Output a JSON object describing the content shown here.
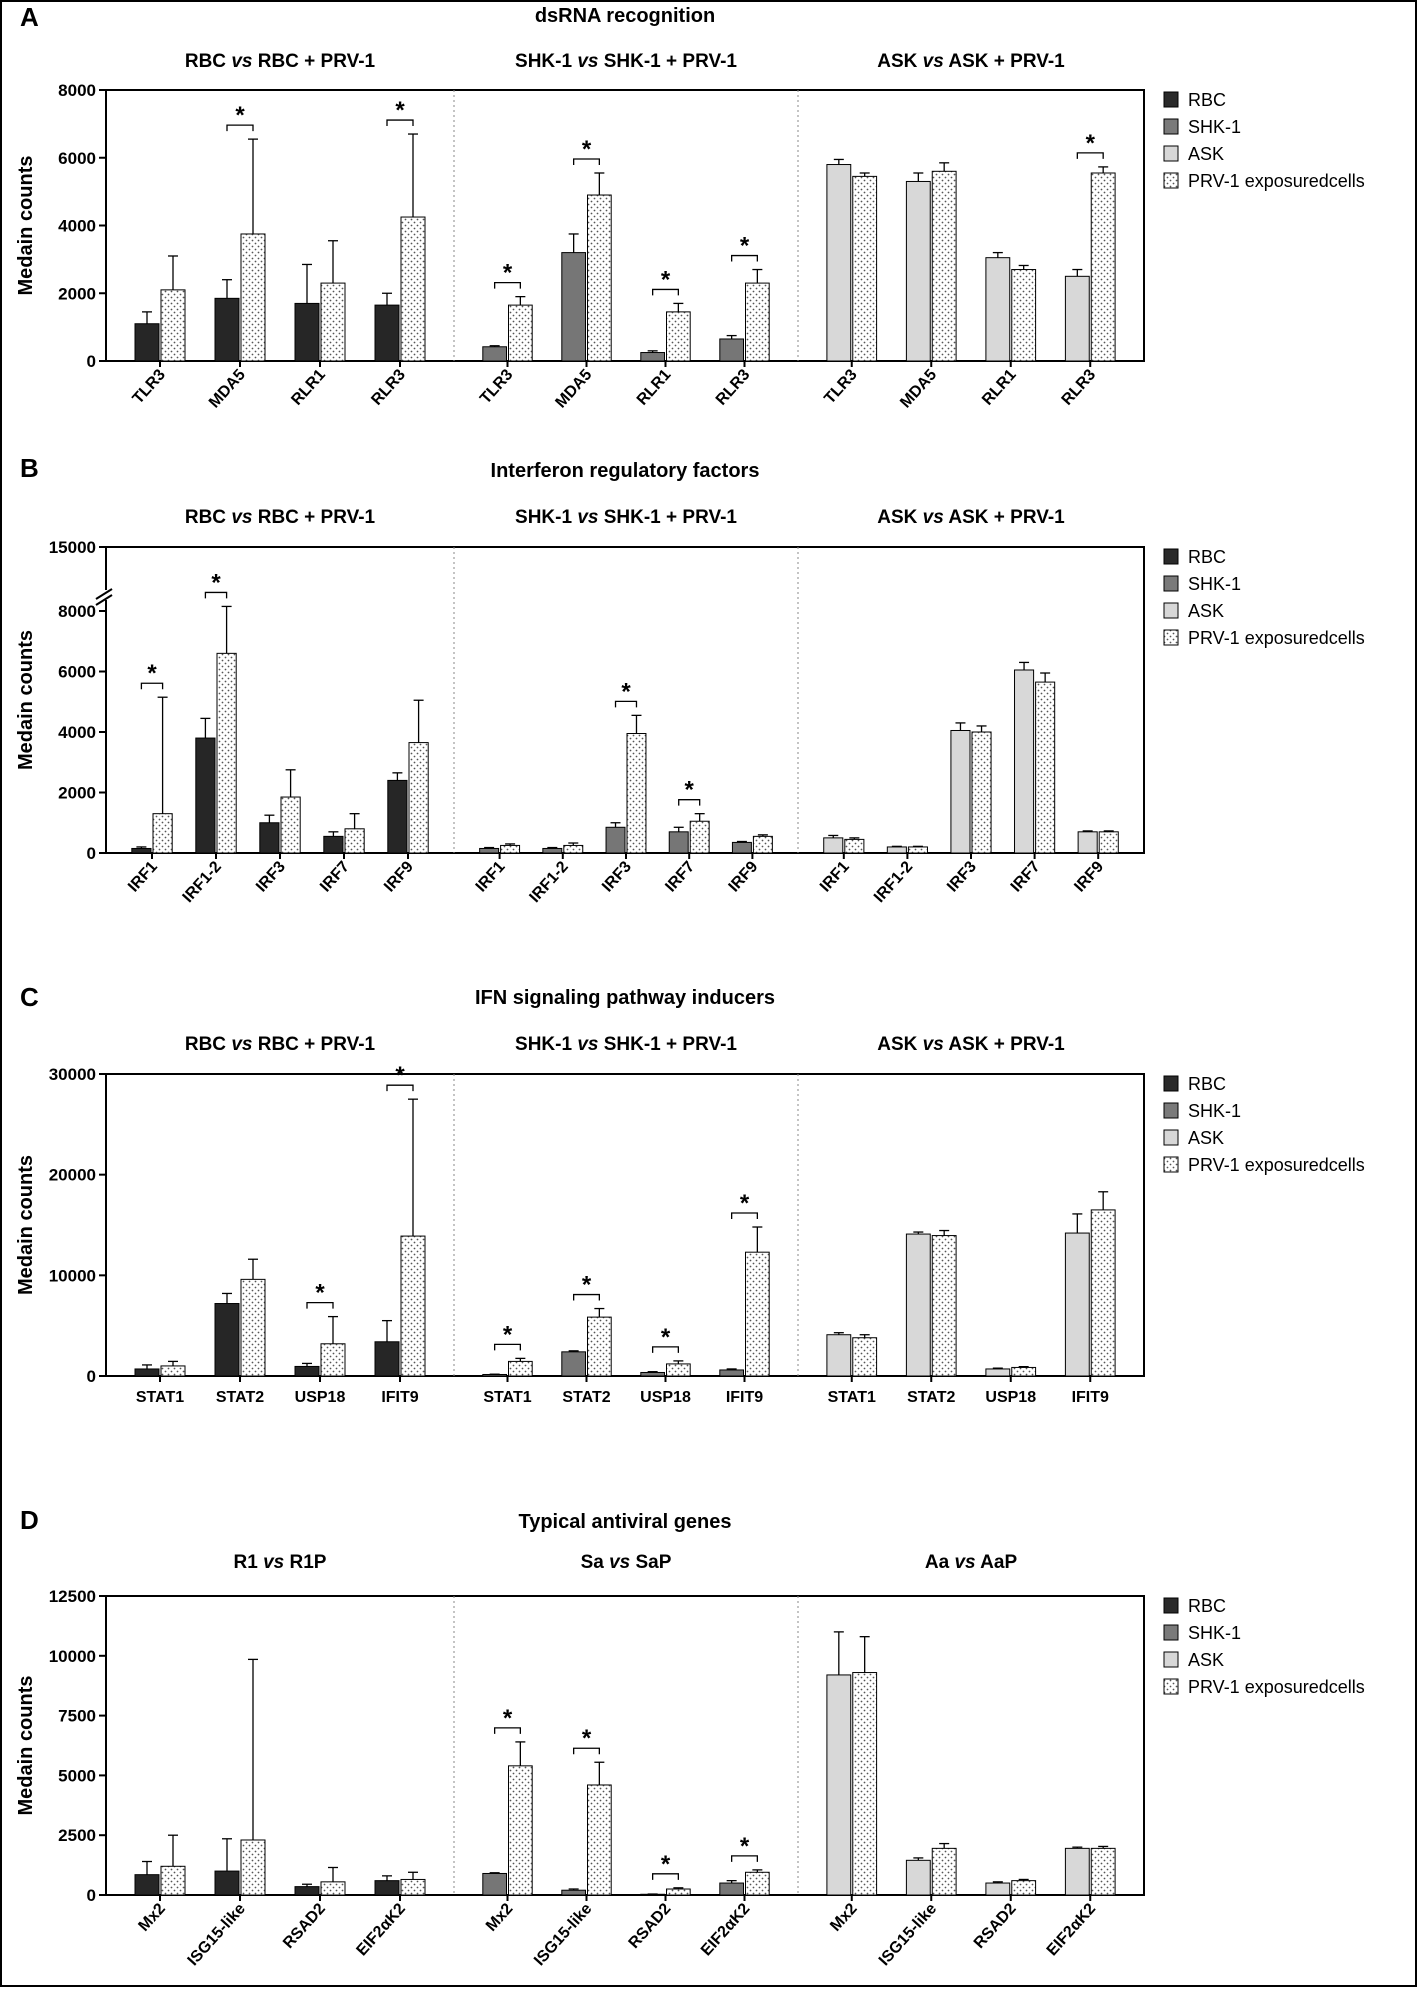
{
  "legend": [
    {
      "label": "RBC",
      "fill": "#2a2a2a"
    },
    {
      "label": "SHK-1",
      "fill": "#7a7a7a"
    },
    {
      "label": "ASK",
      "fill": "#d7d7d7"
    },
    {
      "label": "PRV-1 exposuredcells",
      "fill": "dotted"
    }
  ],
  "chart_data": [
    {
      "type": "bar",
      "panel": "A",
      "title": "dsRNA recognition",
      "ylabel": "Medain counts",
      "ylim": [
        0,
        8000
      ],
      "yticks": [
        0,
        2000,
        4000,
        6000,
        8000
      ],
      "groups": [
        {
          "header": "RBC vs RBC + PRV-1",
          "cell": "RBC",
          "categories": [
            "TLR3",
            "MDA5",
            "RLR1",
            "RLR3"
          ],
          "control": [
            1100,
            1850,
            1700,
            1650
          ],
          "control_err": [
            350,
            550,
            1150,
            350
          ],
          "exposed": [
            2100,
            3750,
            2300,
            4250
          ],
          "exposed_err": [
            1000,
            2800,
            1250,
            2450
          ],
          "significant": [
            false,
            true,
            false,
            true
          ]
        },
        {
          "header": "SHK-1 vs SHK-1 + PRV-1",
          "cell": "SHK-1",
          "categories": [
            "TLR3",
            "MDA5",
            "RLR1",
            "RLR3"
          ],
          "control": [
            420,
            3200,
            250,
            650
          ],
          "control_err": [
            30,
            550,
            50,
            100
          ],
          "exposed": [
            1650,
            4900,
            1450,
            2300
          ],
          "exposed_err": [
            250,
            650,
            250,
            400
          ],
          "significant": [
            true,
            true,
            true,
            true
          ]
        },
        {
          "header": "ASK vs ASK + PRV-1",
          "cell": "ASK",
          "categories": [
            "TLR3",
            "MDA5",
            "RLR1",
            "RLR3"
          ],
          "control": [
            5800,
            5300,
            3050,
            2500
          ],
          "control_err": [
            150,
            250,
            150,
            200
          ],
          "exposed": [
            5450,
            5600,
            2700,
            5550
          ],
          "exposed_err": [
            100,
            250,
            120,
            180
          ],
          "significant": [
            false,
            false,
            false,
            true
          ]
        }
      ]
    },
    {
      "type": "bar",
      "panel": "B",
      "title": "Interferon regulatory factors",
      "ylabel": "Medain counts",
      "ylim": [
        0,
        15000
      ],
      "yaxis_break": 8000,
      "yticks": [
        0,
        2000,
        4000,
        6000,
        8000,
        15000
      ],
      "groups": [
        {
          "header": "RBC vs RBC + PRV-1",
          "cell": "RBC",
          "categories": [
            "IRF1",
            "IRF1-2",
            "IRF3",
            "IRF7",
            "IRF9"
          ],
          "control": [
            150,
            3800,
            1000,
            550,
            2400
          ],
          "control_err": [
            50,
            650,
            250,
            150,
            250
          ],
          "exposed": [
            1300,
            6600,
            1850,
            800,
            3650
          ],
          "exposed_err": [
            3850,
            1900,
            900,
            500,
            1400
          ],
          "significant": [
            true,
            true,
            false,
            false,
            false
          ]
        },
        {
          "header": "SHK-1 vs SHK-1 + PRV-1",
          "cell": "SHK-1",
          "categories": [
            "IRF1",
            "IRF1-2",
            "IRF3",
            "IRF7",
            "IRF9"
          ],
          "control": [
            150,
            150,
            850,
            700,
            350
          ],
          "control_err": [
            30,
            30,
            150,
            150,
            30
          ],
          "exposed": [
            250,
            250,
            3950,
            1050,
            550
          ],
          "exposed_err": [
            50,
            80,
            600,
            250,
            50
          ],
          "significant": [
            false,
            false,
            true,
            true,
            false
          ]
        },
        {
          "header": "ASK vs ASK + PRV-1",
          "cell": "ASK",
          "categories": [
            "IRF1",
            "IRF1-2",
            "IRF3",
            "IRF7",
            "IRF9"
          ],
          "control": [
            500,
            200,
            4050,
            6050,
            700
          ],
          "control_err": [
            80,
            20,
            250,
            250,
            30
          ],
          "exposed": [
            450,
            200,
            4000,
            5650,
            700
          ],
          "exposed_err": [
            50,
            20,
            200,
            300,
            30
          ],
          "significant": [
            false,
            false,
            false,
            false,
            false
          ]
        }
      ]
    },
    {
      "type": "bar",
      "panel": "C",
      "title": "IFN signaling pathway inducers",
      "ylabel": "Medain counts",
      "ylim": [
        0,
        30000
      ],
      "yticks": [
        0,
        10000,
        20000,
        30000
      ],
      "groups": [
        {
          "header": "RBC vs RBC + PRV-1",
          "cell": "RBC",
          "categories": [
            "STAT1",
            "STAT2",
            "USP18",
            "IFIT9"
          ],
          "control": [
            700,
            7200,
            950,
            3400
          ],
          "control_err": [
            400,
            1000,
            300,
            2100
          ],
          "exposed": [
            1000,
            9600,
            3200,
            13900
          ],
          "exposed_err": [
            450,
            2000,
            2700,
            13600
          ],
          "significant": [
            false,
            false,
            true,
            true
          ]
        },
        {
          "header": "SHK-1 vs SHK-1 + PRV-1",
          "cell": "SHK-1",
          "categories": [
            "STAT1",
            "STAT2",
            "USP18",
            "IFIT9"
          ],
          "control": [
            150,
            2400,
            350,
            600
          ],
          "control_err": [
            30,
            100,
            80,
            100
          ],
          "exposed": [
            1450,
            5850,
            1200,
            12300
          ],
          "exposed_err": [
            300,
            850,
            300,
            2500
          ],
          "significant": [
            true,
            true,
            true,
            true
          ]
        },
        {
          "header": "ASK vs ASK + PRV-1",
          "cell": "ASK",
          "categories": [
            "STAT1",
            "STAT2",
            "USP18",
            "IFIT9"
          ],
          "control": [
            4100,
            14100,
            700,
            14200
          ],
          "control_err": [
            200,
            200,
            80,
            1900
          ],
          "exposed": [
            3800,
            13950,
            850,
            16500
          ],
          "exposed_err": [
            300,
            500,
            80,
            1800
          ],
          "significant": [
            false,
            false,
            false,
            false
          ]
        }
      ]
    },
    {
      "type": "bar",
      "panel": "D",
      "title": "Typical antiviral genes",
      "ylabel": "Medain counts",
      "ylim": [
        0,
        12500
      ],
      "yticks": [
        0,
        2500,
        5000,
        7500,
        10000,
        12500
      ],
      "groups": [
        {
          "header": "R1 vs R1P",
          "cell": "RBC",
          "categories": [
            "Mx2",
            "ISG15-like",
            "RSAD2",
            "EIF2αK2"
          ],
          "control": [
            850,
            1000,
            350,
            600
          ],
          "control_err": [
            550,
            1350,
            100,
            200
          ],
          "exposed": [
            1200,
            2300,
            550,
            650
          ],
          "exposed_err": [
            1300,
            7550,
            600,
            300
          ],
          "significant": [
            false,
            false,
            false,
            false
          ]
        },
        {
          "header": "Sa vs SaP",
          "cell": "SHK-1",
          "categories": [
            "Mx2",
            "ISG15-like",
            "RSAD2",
            "EIF2αK2"
          ],
          "control": [
            900,
            200,
            30,
            500
          ],
          "control_err": [
            30,
            50,
            10,
            100
          ],
          "exposed": [
            5400,
            4600,
            250,
            950
          ],
          "exposed_err": [
            1000,
            950,
            50,
            100
          ],
          "significant": [
            true,
            true,
            true,
            true
          ]
        },
        {
          "header": "Aa vs AaP",
          "cell": "ASK",
          "categories": [
            "Mx2",
            "ISG15-like",
            "RSAD2",
            "EIF2αK2"
          ],
          "control": [
            9200,
            1450,
            500,
            1950
          ],
          "control_err": [
            1800,
            100,
            50,
            50
          ],
          "exposed": [
            9300,
            1950,
            600,
            1950
          ],
          "exposed_err": [
            1500,
            200,
            50,
            80
          ],
          "significant": [
            false,
            false,
            false,
            false
          ]
        }
      ]
    }
  ]
}
